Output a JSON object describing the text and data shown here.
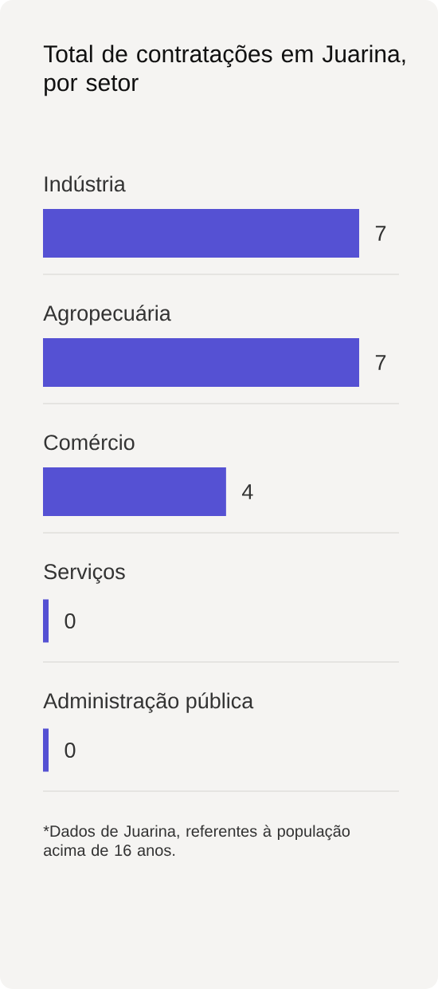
{
  "chart_data": {
    "type": "bar",
    "orientation": "horizontal",
    "title": "Total de contratações em Juarina, por setor",
    "categories": [
      "Indústria",
      "Agropecuária",
      "Comércio",
      "Serviços",
      "Administração pública"
    ],
    "values": [
      7,
      7,
      4,
      0,
      0
    ],
    "color": "#5551d3",
    "data_labels": true,
    "grid": "y",
    "annotations": [
      "*Dados de Juarina, referentes à população acima de 16 anos."
    ]
  }
}
